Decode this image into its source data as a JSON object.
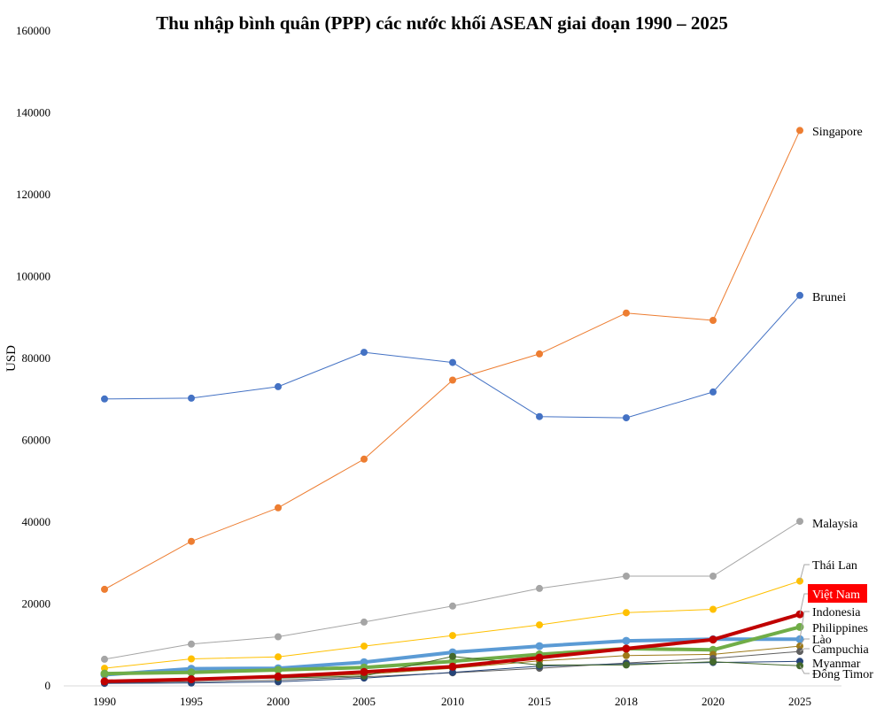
{
  "chart_data": {
    "type": "line",
    "title": "Thu nhập bình quân (PPP) các nước khối ASEAN giai đoạn 1990 – 2025",
    "ylabel": "USD",
    "xlabel": "",
    "categories": [
      "1990",
      "1995",
      "2000",
      "2005",
      "2010",
      "2015",
      "2018",
      "2020",
      "2025"
    ],
    "ylim": [
      0,
      160000
    ],
    "yticks": [
      "0",
      "20000",
      "40000",
      "60000",
      "80000",
      "100000",
      "120000",
      "140000",
      "160000"
    ],
    "grid": false,
    "legend": "inline-right",
    "series": [
      {
        "name": "Singapore",
        "color": "#ED7D31",
        "width": 1,
        "values": [
          23600,
          35300,
          43500,
          55400,
          74700,
          81100,
          91100,
          89300,
          135700
        ]
      },
      {
        "name": "Brunei",
        "color": "#4472C4",
        "width": 1,
        "values": [
          70100,
          70300,
          73100,
          81500,
          79000,
          65800,
          65500,
          71800,
          95400
        ]
      },
      {
        "name": "Malaysia",
        "color": "#A5A5A5",
        "width": 1,
        "values": [
          6500,
          10200,
          12000,
          15600,
          19500,
          23800,
          26800,
          26800,
          40200
        ]
      },
      {
        "name": "Thái Lan",
        "color": "#FFC000",
        "width": 1,
        "values": [
          4300,
          6600,
          7100,
          9700,
          12300,
          14900,
          17900,
          18700,
          25600
        ]
      },
      {
        "name": "Indonesia",
        "color": "#5B9BD5",
        "width": 4,
        "values": [
          2700,
          4200,
          4300,
          5800,
          8200,
          9700,
          11000,
          11400,
          11400
        ]
      },
      {
        "name": "Philippines",
        "color": "#70AD47",
        "width": 4,
        "values": [
          3000,
          3300,
          3900,
          4500,
          6000,
          7700,
          9100,
          8800,
          14400
        ]
      },
      {
        "name": "Lào",
        "color": "#9E7A18",
        "width": 1,
        "values": [
          1100,
          1500,
          2000,
          2800,
          4300,
          6100,
          7400,
          7700,
          9700
        ]
      },
      {
        "name": "Campuchia",
        "color": "#5F5F5F",
        "width": 1,
        "values": [
          700,
          1000,
          1400,
          2200,
          3200,
          4300,
          5600,
          6700,
          8400
        ]
      },
      {
        "name": "Myanmar",
        "color": "#264478",
        "width": 1,
        "values": [
          600,
          700,
          1000,
          1900,
          3300,
          4800,
          5400,
          5700,
          6000
        ]
      },
      {
        "name": "Đông Timor",
        "color": "#43682B",
        "width": 1,
        "values": [
          1200,
          1800,
          1900,
          2400,
          7200,
          5100,
          5100,
          5900,
          4900
        ]
      },
      {
        "name": "Việt Nam",
        "color": "#C00000",
        "width": 4,
        "values": [
          1100,
          1600,
          2300,
          3400,
          4700,
          6900,
          9100,
          11300,
          17500
        ],
        "highlight": true
      }
    ]
  }
}
